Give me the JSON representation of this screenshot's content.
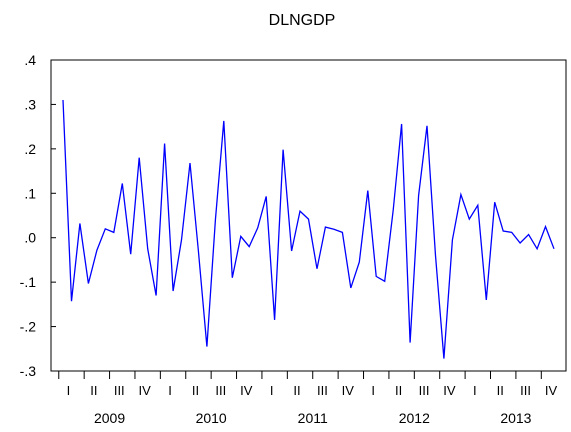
{
  "chart_data": {
    "type": "line",
    "title": "DLNGDP",
    "xlabel": "",
    "ylabel": "",
    "ylim": [
      -0.3,
      0.4
    ],
    "y_ticks": [
      {
        "value": 0.4,
        "label": ".4"
      },
      {
        "value": 0.3,
        "label": ".3"
      },
      {
        "value": 0.2,
        "label": ".2"
      },
      {
        "value": 0.1,
        "label": ".1"
      },
      {
        "value": 0.0,
        "label": ".0"
      },
      {
        "value": -0.1,
        "label": "-.1"
      },
      {
        "value": -0.2,
        "label": "-.2"
      },
      {
        "value": -0.3,
        "label": "-.3"
      }
    ],
    "quarter_labels": [
      "I",
      "II",
      "III",
      "IV"
    ],
    "years": [
      "2009",
      "2010",
      "2011",
      "2012",
      "2013"
    ],
    "frequency": "monthly",
    "grid": false,
    "line_color": "#0000ff",
    "series": [
      {
        "values": [
          0.31,
          -0.143,
          0.032,
          -0.103,
          -0.028,
          0.02,
          0.012,
          0.122,
          -0.037,
          0.18,
          -0.025,
          -0.13,
          0.212,
          -0.12,
          -0.005,
          0.168,
          -0.03,
          -0.245,
          0.04,
          0.263,
          -0.09,
          0.003,
          -0.02,
          0.022,
          0.093,
          -0.185,
          0.198,
          -0.03,
          0.06,
          0.042,
          -0.07,
          0.024,
          0.019,
          0.012,
          -0.113,
          -0.055,
          0.106,
          -0.087,
          -0.098,
          0.062,
          0.256,
          -0.236,
          0.095,
          0.252,
          -0.04,
          -0.272,
          -0.005,
          0.097,
          0.042,
          0.073,
          -0.14,
          0.08,
          0.015,
          0.012,
          -0.012,
          0.007,
          -0.025,
          0.025,
          -0.025
        ]
      }
    ]
  }
}
